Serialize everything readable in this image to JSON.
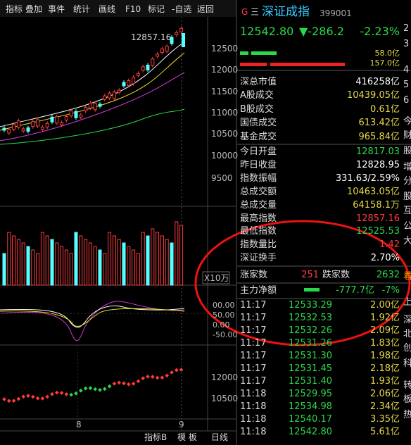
{
  "toolbar": [
    "指标",
    "叠加",
    "事件",
    "统计",
    "画线",
    "F10",
    "标记",
    "-自选",
    "返回"
  ],
  "chart": {
    "price_axis": [
      "12500",
      "12000",
      "11500",
      "11000",
      "10500",
      "10000",
      "9500"
    ],
    "high_label": "12857.16",
    "volume_unit": "X10万",
    "indicator_axis": [
      "00.00",
      "50.00",
      "0.00",
      "-50.00"
    ],
    "lower_axis": [
      "12000",
      "10500"
    ],
    "dates": [
      "8",
      "9"
    ]
  },
  "bottom_bar": [
    "指标B",
    "模 板",
    "日线"
  ],
  "quote": {
    "flag": "G",
    "menu": "三",
    "name": "深证成指",
    "code": "399001",
    "price": "12542.80",
    "change": "▼-286.2",
    "pct": "-2.23%",
    "buy_amount": "58.0亿",
    "sell_amount": "157.0亿"
  },
  "stats": [
    {
      "label": "深总市值",
      "value": "416258亿",
      "color": "#ffffff"
    },
    {
      "label": "A股成交",
      "value": "10439.05亿",
      "color": "#e6d84a"
    },
    {
      "label": "B股成交",
      "value": "0.61亿",
      "color": "#e6d84a"
    },
    {
      "label": "国债成交",
      "value": "613.42亿",
      "color": "#e6d84a"
    },
    {
      "label": "基金成交",
      "value": "965.84亿",
      "color": "#e6d84a"
    }
  ],
  "stats2": [
    {
      "label": "今日开盘",
      "value": "12817.03",
      "color": "#2bd84a"
    },
    {
      "label": "昨日收盘",
      "value": "12828.95",
      "color": "#ffffff"
    },
    {
      "label": "指数振幅",
      "value": "331.63/2.59%",
      "color": "#ffffff"
    },
    {
      "label": "总成交额",
      "value": "10463.05亿",
      "color": "#e6d84a"
    },
    {
      "label": "总成交量",
      "value": "64158.1万",
      "color": "#e6d84a"
    },
    {
      "label": "最高指数",
      "value": "12857.16",
      "color": "#ff3b3b"
    },
    {
      "label": "最低指数",
      "value": "12525.53",
      "color": "#2bd84a"
    },
    {
      "label": "指数量比",
      "value": "1.42",
      "color": "#ff3b3b"
    },
    {
      "label": "深证换手",
      "value": "2.70%",
      "color": "#ffffff"
    }
  ],
  "breadth": {
    "up_label": "涨家数",
    "up": "251",
    "down_label": "跌家数",
    "down": "2632"
  },
  "main_flow": {
    "label": "主力净额",
    "value": "-777.7亿",
    "pct": "-7%"
  },
  "ticks": [
    [
      "11:17",
      "12533.29",
      "2.00亿"
    ],
    [
      "11:17",
      "12532.53",
      "1.92亿"
    ],
    [
      "11:17",
      "12532.26",
      "2.09亿"
    ],
    [
      "11:17",
      "12531.26",
      "1.83亿"
    ],
    [
      "11:17",
      "12531.30",
      "1.98亿"
    ],
    [
      "11:17",
      "12531.45",
      "2.18亿"
    ],
    [
      "11:17",
      "12531.40",
      "1.93亿"
    ],
    [
      "11:18",
      "12529.95",
      "2.06亿"
    ],
    [
      "11:18",
      "12534.98",
      "2.34亿"
    ],
    [
      "11:18",
      "12540.17",
      "3.35亿"
    ],
    [
      "11:18",
      "12542.80",
      "5.61亿"
    ]
  ],
  "edge": [
    "2",
    "3",
    "4",
    "5",
    "6",
    "今",
    "财",
    "股",
    "增",
    "分",
    "股",
    "互",
    "公",
    "大",
    "着",
    "上",
    "深",
    "北",
    "创",
    "科",
    "转",
    "板",
    "热"
  ]
}
